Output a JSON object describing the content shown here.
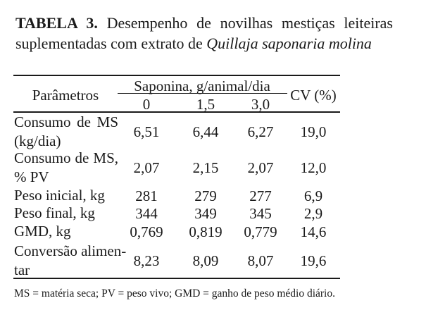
{
  "title": {
    "label": "TABELA 3.",
    "text": "Desempenho de novilhas mestiças leiteiras suplementadas com extrato de ",
    "species": "Quillaja saponaria molina"
  },
  "table": {
    "header_param": "Parâmetros",
    "header_group": "Saponina, g/animal/dia",
    "header_doses": [
      "0",
      "1,5",
      "3,0"
    ],
    "header_cv": "CV (%)",
    "rows": [
      {
        "label": "Consumo de MS (kg/dia)",
        "values": [
          "6,51",
          "6,44",
          "6,27"
        ],
        "cv": "19,0"
      },
      {
        "label": "Consumo de MS, % PV",
        "values": [
          "2,07",
          "2,15",
          "2,07"
        ],
        "cv": "12,0"
      },
      {
        "label": "Peso inicial, kg",
        "values": [
          "281",
          "279",
          "277"
        ],
        "cv": "6,9"
      },
      {
        "label": "Peso final, kg",
        "values": [
          "344",
          "349",
          "345"
        ],
        "cv": "2,9"
      },
      {
        "label": "GMD, kg",
        "values": [
          "0,769",
          "0,819",
          "0,779"
        ],
        "cv": "14,6"
      },
      {
        "label": "Conversão alimen-tar",
        "values": [
          "8,23",
          "8,09",
          "8,07"
        ],
        "cv": "19,6"
      }
    ]
  },
  "footnote": "MS = matéria seca; PV = peso vivo; GMD = ganho de peso médio diário."
}
